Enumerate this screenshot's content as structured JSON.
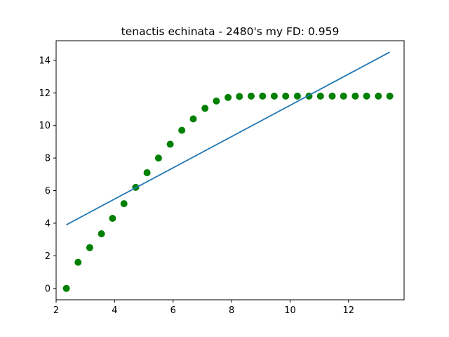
{
  "chart_data": {
    "type": "scatter",
    "title": "tenactis echinata - 2480's my FD: 0.959",
    "xlabel": "",
    "ylabel": "",
    "xlim": [
      2.0,
      13.9
    ],
    "ylim": [
      -0.7,
      15.2
    ],
    "x_ticks": [
      2,
      4,
      6,
      8,
      10,
      12
    ],
    "y_ticks": [
      0,
      2,
      4,
      6,
      8,
      10,
      12,
      14
    ],
    "grid": false,
    "series": [
      {
        "kind": "scatter",
        "color": "#008000",
        "points": [
          {
            "x": 2.35,
            "y": 0.0
          },
          {
            "x": 2.75,
            "y": 1.6
          },
          {
            "x": 3.15,
            "y": 2.5
          },
          {
            "x": 3.55,
            "y": 3.35
          },
          {
            "x": 3.93,
            "y": 4.3
          },
          {
            "x": 4.32,
            "y": 5.2
          },
          {
            "x": 4.72,
            "y": 6.2
          },
          {
            "x": 5.11,
            "y": 7.1
          },
          {
            "x": 5.5,
            "y": 8.0
          },
          {
            "x": 5.9,
            "y": 8.85
          },
          {
            "x": 6.3,
            "y": 9.7
          },
          {
            "x": 6.69,
            "y": 10.4
          },
          {
            "x": 7.09,
            "y": 11.05
          },
          {
            "x": 7.48,
            "y": 11.5
          },
          {
            "x": 7.88,
            "y": 11.72
          },
          {
            "x": 8.27,
            "y": 11.78
          },
          {
            "x": 8.67,
            "y": 11.8
          },
          {
            "x": 9.06,
            "y": 11.8
          },
          {
            "x": 9.46,
            "y": 11.8
          },
          {
            "x": 9.85,
            "y": 11.8
          },
          {
            "x": 10.25,
            "y": 11.8
          },
          {
            "x": 10.65,
            "y": 11.8
          },
          {
            "x": 11.04,
            "y": 11.8
          },
          {
            "x": 11.44,
            "y": 11.8
          },
          {
            "x": 11.83,
            "y": 11.8
          },
          {
            "x": 12.23,
            "y": 11.8
          },
          {
            "x": 12.62,
            "y": 11.8
          },
          {
            "x": 13.02,
            "y": 11.8
          },
          {
            "x": 13.41,
            "y": 11.8
          }
        ]
      },
      {
        "kind": "line",
        "color": "#1f77b4",
        "points": [
          {
            "x": 2.35,
            "y": 3.9
          },
          {
            "x": 13.41,
            "y": 14.5
          }
        ]
      }
    ]
  }
}
